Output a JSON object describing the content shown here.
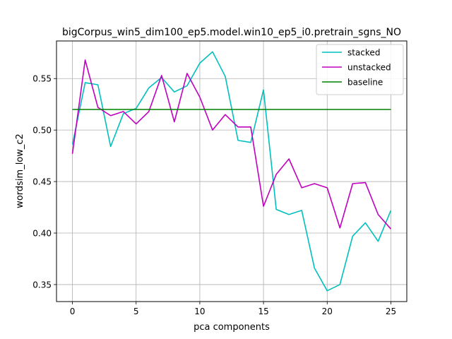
{
  "chart_data": {
    "type": "line",
    "title": "bigCorpus_win5_dim100_ep5.model.win10_ep5_i0.pretrain_sgns_NO",
    "xlabel": "pca components",
    "ylabel": "wordsim_low_c2",
    "xlim": [
      -1.25,
      26.25
    ],
    "ylim": [
      0.3335,
      0.5865
    ],
    "xticks": [
      0,
      5,
      10,
      15,
      20,
      25
    ],
    "xtick_labels": [
      "0",
      "5",
      "10",
      "15",
      "20",
      "25"
    ],
    "yticks": [
      0.35,
      0.4,
      0.45,
      0.5,
      0.55
    ],
    "ytick_labels": [
      "0.35",
      "0.40",
      "0.45",
      "0.50",
      "0.55"
    ],
    "grid": true,
    "legend_position": "top-right",
    "x": [
      0,
      1,
      2,
      3,
      4,
      5,
      6,
      7,
      8,
      9,
      10,
      11,
      12,
      13,
      14,
      15,
      16,
      17,
      18,
      19,
      20,
      21,
      22,
      23,
      24,
      25
    ],
    "series": [
      {
        "name": "stacked",
        "color": "#00bfbf",
        "values": [
          0.486,
          0.546,
          0.544,
          0.484,
          0.516,
          0.521,
          0.541,
          0.551,
          0.537,
          0.543,
          0.565,
          0.576,
          0.552,
          0.49,
          0.488,
          0.539,
          0.423,
          0.418,
          0.422,
          0.366,
          0.344,
          0.35,
          0.397,
          0.41,
          0.392,
          0.422
        ]
      },
      {
        "name": "unstacked",
        "color": "#bf00bf",
        "values": [
          0.477,
          0.568,
          0.522,
          0.514,
          0.518,
          0.506,
          0.518,
          0.553,
          0.508,
          0.555,
          0.532,
          0.5,
          0.515,
          0.503,
          0.503,
          0.426,
          0.457,
          0.472,
          0.444,
          0.448,
          0.444,
          0.405,
          0.448,
          0.449,
          0.418,
          0.404
        ]
      },
      {
        "name": "baseline",
        "color": "#008000",
        "values": [
          0.52,
          0.52,
          0.52,
          0.52,
          0.52,
          0.52,
          0.52,
          0.52,
          0.52,
          0.52,
          0.52,
          0.52,
          0.52,
          0.52,
          0.52,
          0.52,
          0.52,
          0.52,
          0.52,
          0.52,
          0.52,
          0.52,
          0.52,
          0.52,
          0.52,
          0.52
        ]
      }
    ]
  }
}
